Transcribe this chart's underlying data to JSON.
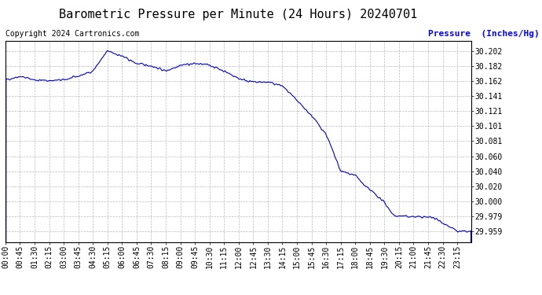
{
  "title": "Barometric Pressure per Minute (24 Hours) 20240701",
  "copyright_text": "Copyright 2024 Cartronics.com",
  "ylabel": "Pressure  (Inches/Hg)",
  "line_color": "#0000cc",
  "background_color": "#ffffff",
  "grid_color": "#bbbbbb",
  "ylim": [
    29.945,
    30.215
  ],
  "yticks": [
    30.202,
    30.182,
    30.162,
    30.141,
    30.121,
    30.101,
    30.081,
    30.06,
    30.04,
    30.02,
    30.0,
    29.979,
    29.959
  ],
  "xtick_labels": [
    "00:00",
    "00:45",
    "01:30",
    "02:15",
    "03:00",
    "03:45",
    "04:30",
    "05:15",
    "06:00",
    "06:45",
    "07:30",
    "08:15",
    "09:00",
    "09:45",
    "10:30",
    "11:15",
    "12:00",
    "12:45",
    "13:30",
    "14:15",
    "15:00",
    "15:45",
    "16:30",
    "17:15",
    "18:00",
    "18:45",
    "19:30",
    "20:15",
    "21:00",
    "21:45",
    "22:30",
    "23:15"
  ],
  "title_fontsize": 11,
  "tick_fontsize": 7,
  "ylabel_fontsize": 8,
  "copyright_fontsize": 7
}
